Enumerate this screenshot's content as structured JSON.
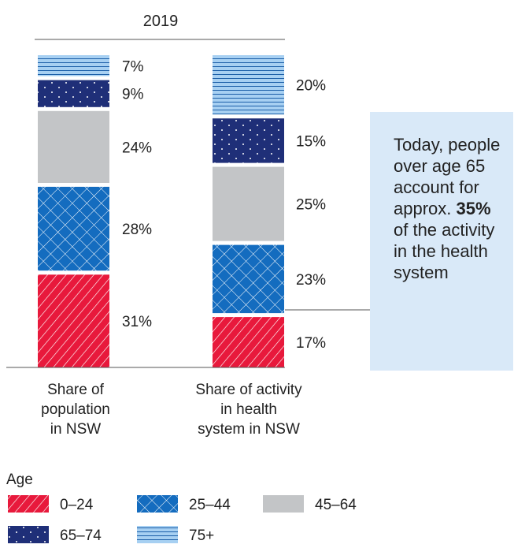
{
  "chart_data": {
    "type": "bar",
    "stacked": true,
    "title": "2019",
    "categories": [
      "Share of population in NSW",
      "Share of activity in health system in NSW"
    ],
    "category_label_lines": [
      [
        "Share of",
        "population",
        "in NSW"
      ],
      [
        "Share of activity",
        "in health",
        "system in NSW"
      ]
    ],
    "unit": "%",
    "series": [
      {
        "name": "0–24",
        "values": [
          31,
          17
        ],
        "color": "#e8193c",
        "pattern": "diagonal-lines"
      },
      {
        "name": "25–44",
        "values": [
          28,
          23
        ],
        "color": "#146cbf",
        "pattern": "crosshatch"
      },
      {
        "name": "45–64",
        "values": [
          24,
          25
        ],
        "color": "#c3c5c7",
        "pattern": "solid"
      },
      {
        "name": "65–74",
        "values": [
          9,
          15
        ],
        "color": "#1f2f78",
        "pattern": "dots"
      },
      {
        "name": "75+",
        "values": [
          7,
          20
        ],
        "color": "#a7d0f2",
        "pattern": "horizontal-lines"
      }
    ],
    "legend_title": "Age",
    "legend_position": "bottom-left"
  },
  "callout": {
    "text_before": "Today, people over age 65 account for approx. ",
    "highlight": "35%",
    "text_after": " of the activity in the health system"
  }
}
